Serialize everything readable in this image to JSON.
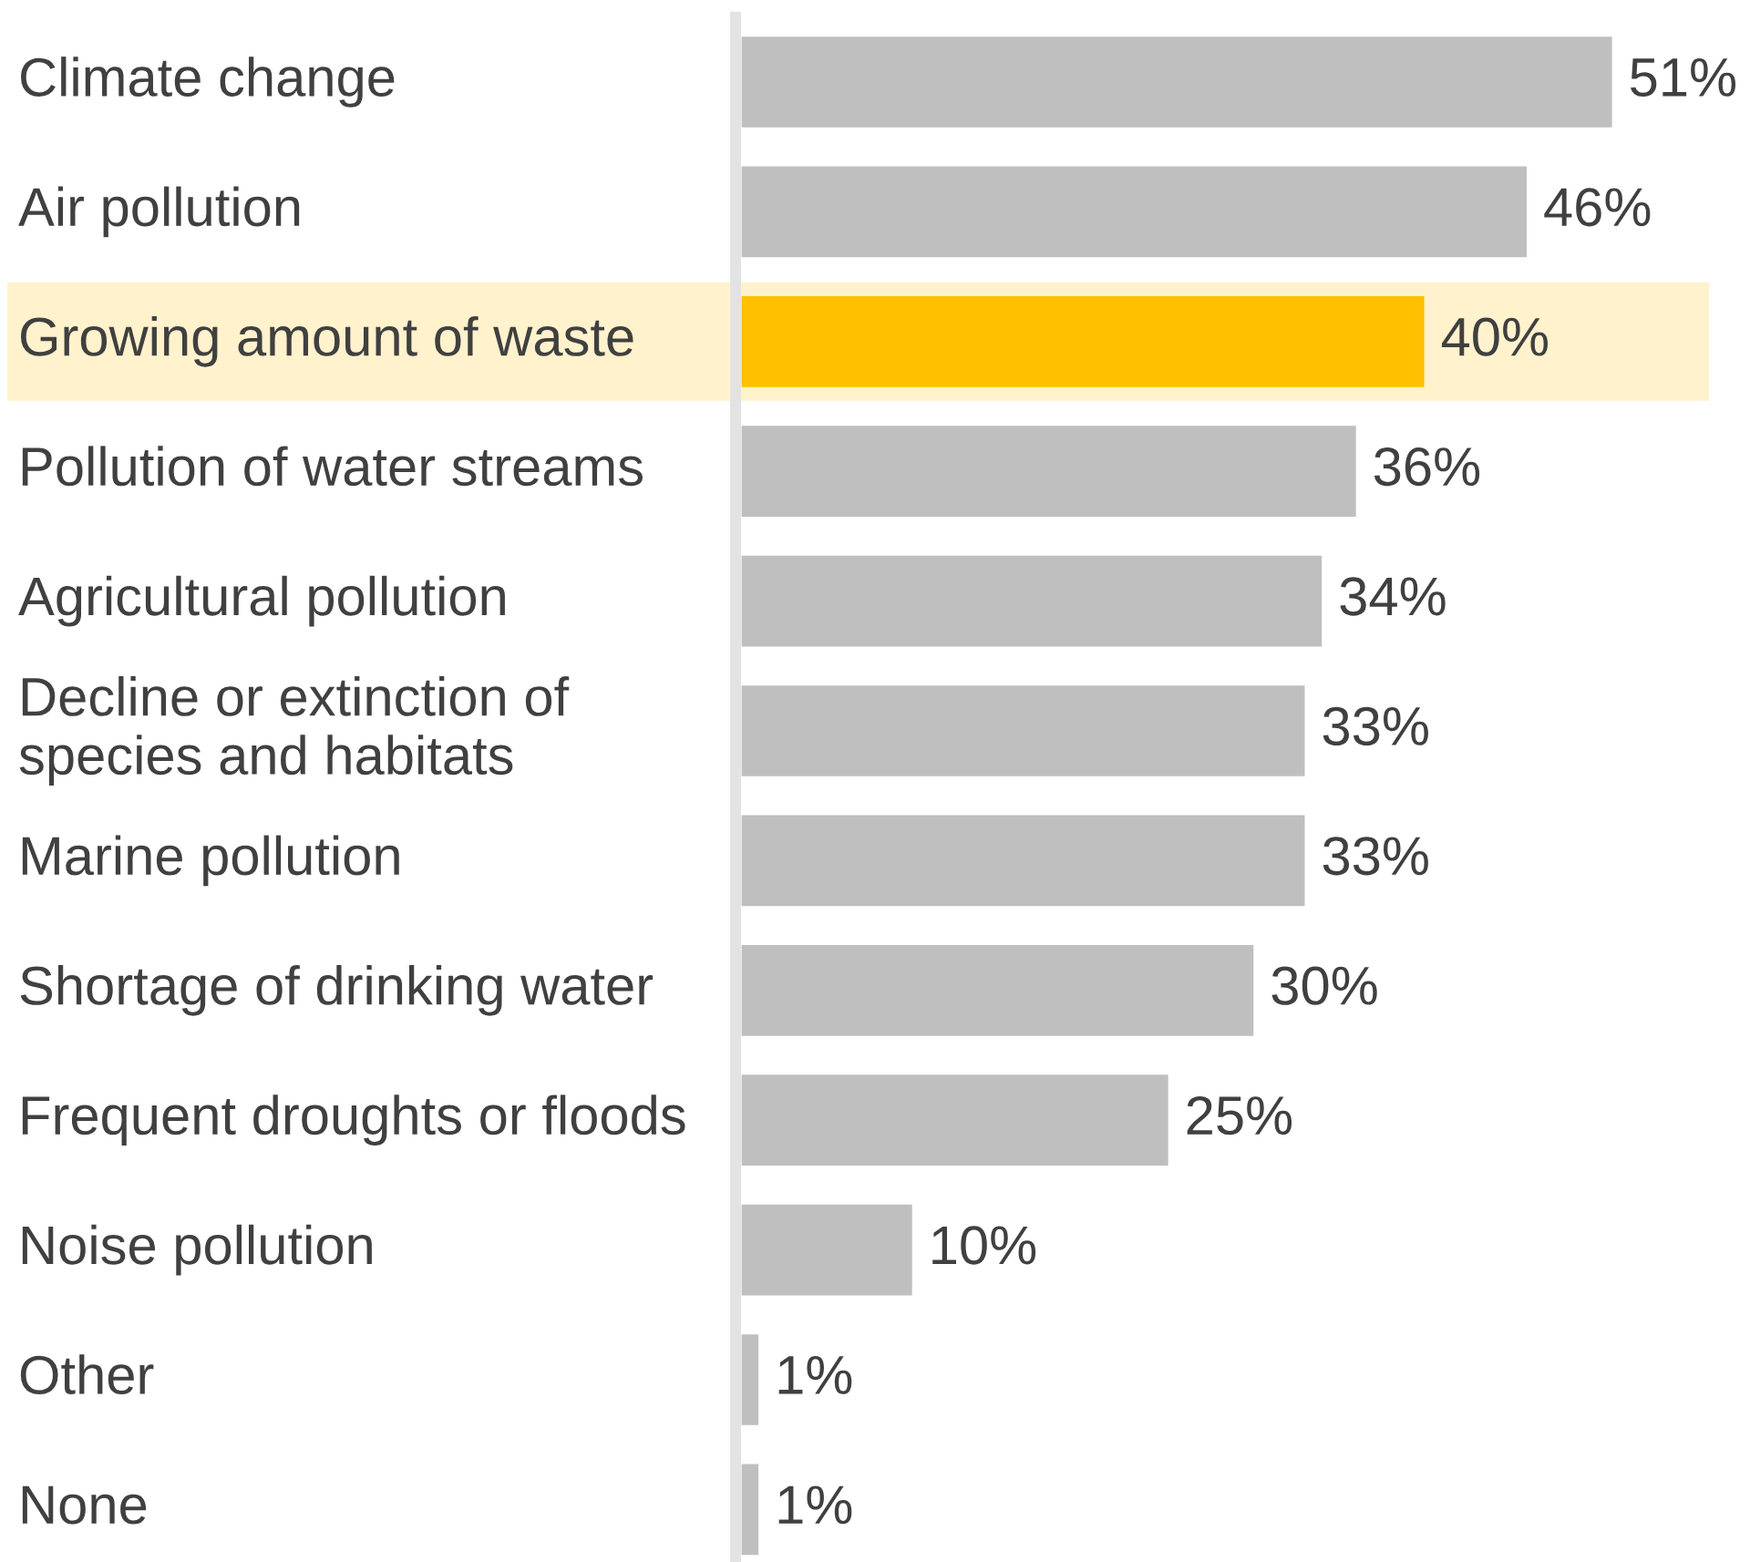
{
  "chart_data": {
    "type": "bar",
    "orientation": "horizontal",
    "categories": [
      "Climate change",
      "Air pollution",
      "Growing amount of waste",
      "Pollution of water streams",
      "Agricultural pollution",
      "Decline or extinction of\nspecies and habitats",
      "Marine pollution",
      "Shortage of drinking water",
      "Frequent droughts or floods",
      "Noise pollution",
      "Other",
      "None"
    ],
    "values": [
      51,
      46,
      40,
      36,
      34,
      33,
      33,
      30,
      25,
      10,
      1,
      1
    ],
    "value_labels": [
      "51%",
      "46%",
      "40%",
      "36%",
      "34%",
      "33%",
      "33%",
      "30%",
      "25%",
      "10%",
      "1%",
      "1%"
    ],
    "colors": [
      "#bfbfbf",
      "#bfbfbf",
      "#ffc000",
      "#bfbfbf",
      "#bfbfbf",
      "#bfbfbf",
      "#bfbfbf",
      "#bfbfbf",
      "#bfbfbf",
      "#bfbfbf",
      "#bfbfbf",
      "#bfbfbf"
    ],
    "bands": [
      {
        "axis": "y",
        "from": "Growing amount of waste",
        "to": "Growing amount of waste",
        "color": "#fff2cc"
      }
    ],
    "tick_labels": "y"
  }
}
